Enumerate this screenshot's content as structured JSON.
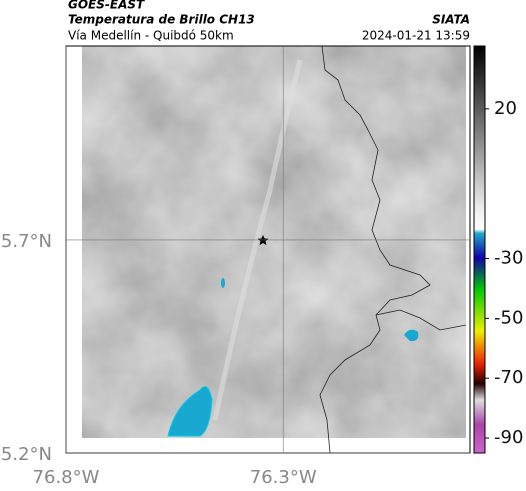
{
  "header": {
    "source": "GOES-EAST",
    "title": "Temperatura de Brillo CH13",
    "subtitle": "Vía Medellín - Quibdó 50km",
    "org": "SIATA",
    "datetime": "2024-01-21 13:59"
  },
  "map": {
    "xlim": [
      -76.8,
      -75.87
    ],
    "ylim": [
      5.2,
      6.155
    ],
    "xticks": [
      {
        "value": -76.8,
        "label": "76.8°W"
      },
      {
        "value": -76.3,
        "label": "76.3°W"
      }
    ],
    "yticks": [
      {
        "value": 5.2,
        "label": "5.2°N"
      },
      {
        "value": 5.7,
        "label": "5.7°N"
      }
    ],
    "grid": true
  },
  "colorbar": {
    "lim": [
      -95,
      41
    ],
    "ticks": [
      20,
      -30,
      -50,
      -70,
      -90
    ]
  }
}
